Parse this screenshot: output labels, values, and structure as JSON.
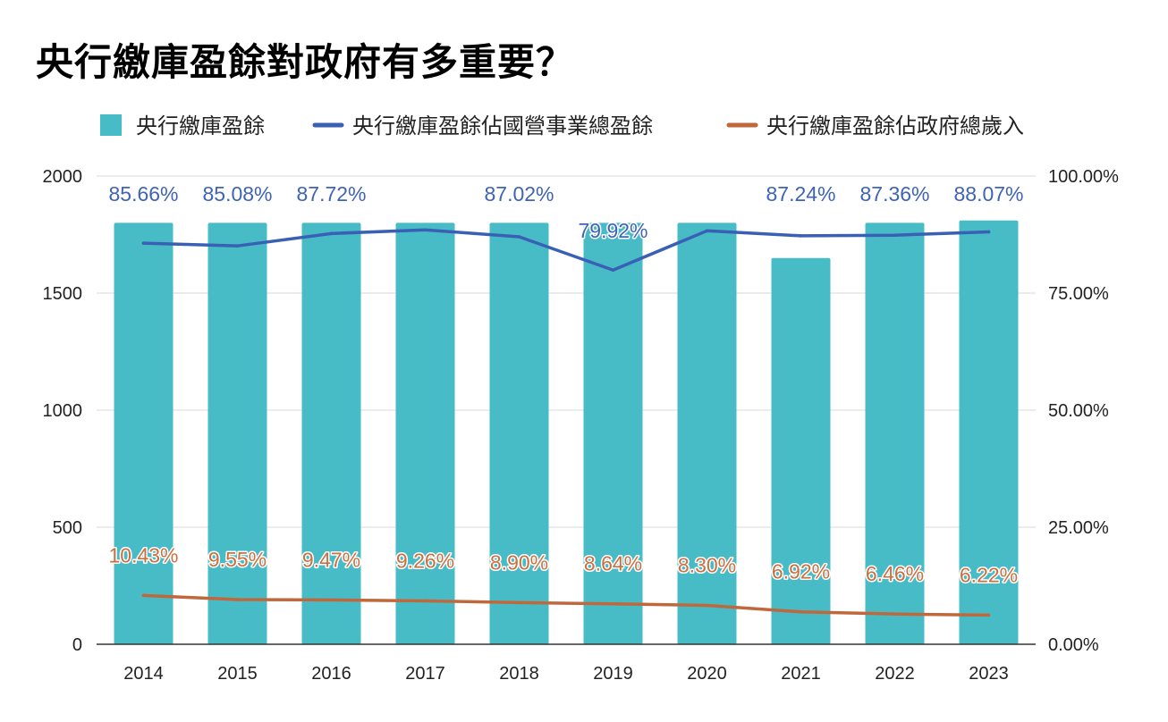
{
  "title": "央行繳庫盈餘對政府有多重要？",
  "colors": {
    "bars": "#47bcc6",
    "line_share_soe": "#3a60b6",
    "line_share_revenue": "#c0683b",
    "axis": "#333333",
    "grid": "#d9d9d9"
  },
  "chart_data": {
    "type": "bar",
    "categories": [
      "2014",
      "2015",
      "2016",
      "2017",
      "2018",
      "2019",
      "2020",
      "2021",
      "2022",
      "2023"
    ],
    "series": [
      {
        "name": "央行繳庫盈餘",
        "kind": "bar",
        "axis": "left",
        "values": [
          1800,
          1800,
          1800,
          1800,
          1800,
          1800,
          1800,
          1650,
          1800,
          1810
        ]
      },
      {
        "name": "央行繳庫盈餘佔國營事業總盈餘",
        "kind": "line",
        "axis": "right",
        "values": [
          85.66,
          85.08,
          87.72,
          88.5,
          87.02,
          79.92,
          88.3,
          87.24,
          87.36,
          88.07
        ],
        "labels": [
          "85.66%",
          "85.08%",
          "87.72%",
          "",
          "87.02%",
          "79.92%",
          "",
          "87.24%",
          "87.36%",
          "88.07%"
        ]
      },
      {
        "name": "央行繳庫盈餘佔政府總歲入",
        "kind": "line",
        "axis": "right",
        "values": [
          10.43,
          9.55,
          9.47,
          9.26,
          8.9,
          8.64,
          8.3,
          6.92,
          6.46,
          6.22
        ],
        "labels": [
          "10.43%",
          "9.55%",
          "9.47%",
          "9.26%",
          "8.90%",
          "8.64%",
          "8.30%",
          "6.92%",
          "6.46%",
          "6.22%"
        ]
      }
    ],
    "y_left": {
      "ylim": [
        0,
        2000
      ],
      "ticks": [
        "0",
        "500",
        "1000",
        "1500",
        "2000"
      ]
    },
    "y_right": {
      "ylim": [
        0,
        100
      ],
      "ticks": [
        "0.00%",
        "25.00%",
        "50.00%",
        "75.00%",
        "100.00%"
      ]
    },
    "legend": {
      "placement": "top-left"
    },
    "grid": true
  }
}
